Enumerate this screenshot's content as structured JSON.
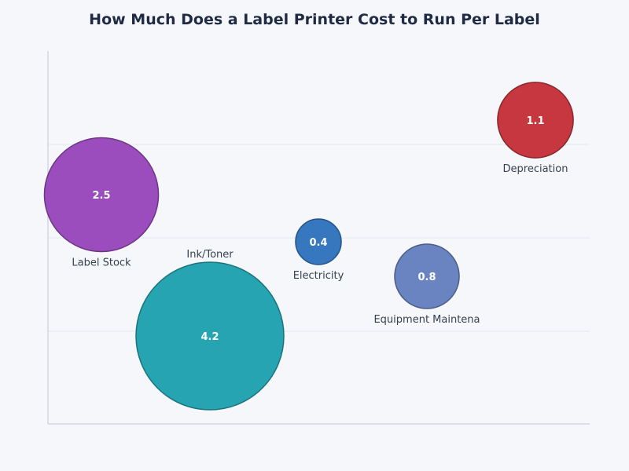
{
  "chart_data": {
    "type": "scatter",
    "title": "How Much Does a Label Printer Cost to Run Per Label",
    "grid": true,
    "points": [
      {
        "label": "Label Stock",
        "value": 2.5,
        "color": "#9b4dbd"
      },
      {
        "label": "Ink/Toner",
        "value": 4.2,
        "color": "#26a4b2"
      },
      {
        "label": "Electricity",
        "value": 0.4,
        "color": "#3677c0"
      },
      {
        "label": "Equipment Maintena",
        "value": 0.8,
        "color": "#6a83c1"
      },
      {
        "label": "Depreciation",
        "value": 1.1,
        "color": "#c6373f"
      }
    ]
  }
}
